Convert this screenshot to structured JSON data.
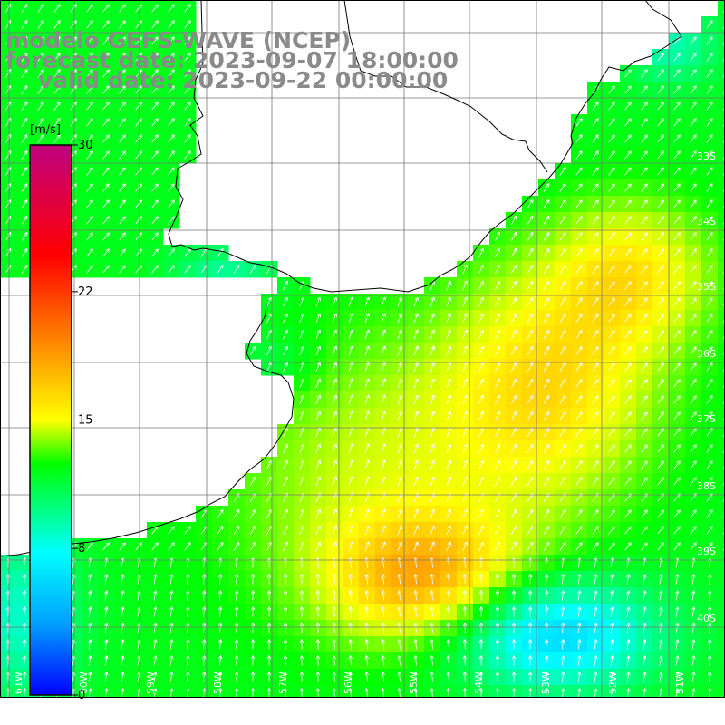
{
  "title": {
    "model": "modelo GEFS-WAVE (NCEP)",
    "forecast": "forecast date: 2023-09-07 18:00:00",
    "valid": "valid date: 2023-09-22 00:00:00"
  },
  "colorbar": {
    "unit": "[m/s]",
    "min": 0,
    "max": 30,
    "ticks": [
      "30",
      "22",
      "15",
      "8",
      "0"
    ],
    "tick_values": [
      30,
      22,
      15,
      8,
      0
    ],
    "colors": [
      "#0000ff",
      "#00a0ff",
      "#00ffff",
      "#00ff80",
      "#00ff00",
      "#80ff00",
      "#ffff00",
      "#ff8000",
      "#ff0000",
      "#c00080"
    ]
  },
  "axes": {
    "lat_labels": [
      "33S",
      "34S",
      "35S",
      "36S",
      "37S",
      "38S",
      "39S",
      "40S"
    ],
    "lon_labels": [
      "61W",
      "60W",
      "59W",
      "58W",
      "57W",
      "56W",
      "55W",
      "54W",
      "53W",
      "52W",
      "51W"
    ]
  },
  "colors": {
    "land": "#ffffff",
    "coast": "#000000",
    "grid": "#777777",
    "title": "#8a8a8a",
    "arrow": "#ffffff"
  }
}
